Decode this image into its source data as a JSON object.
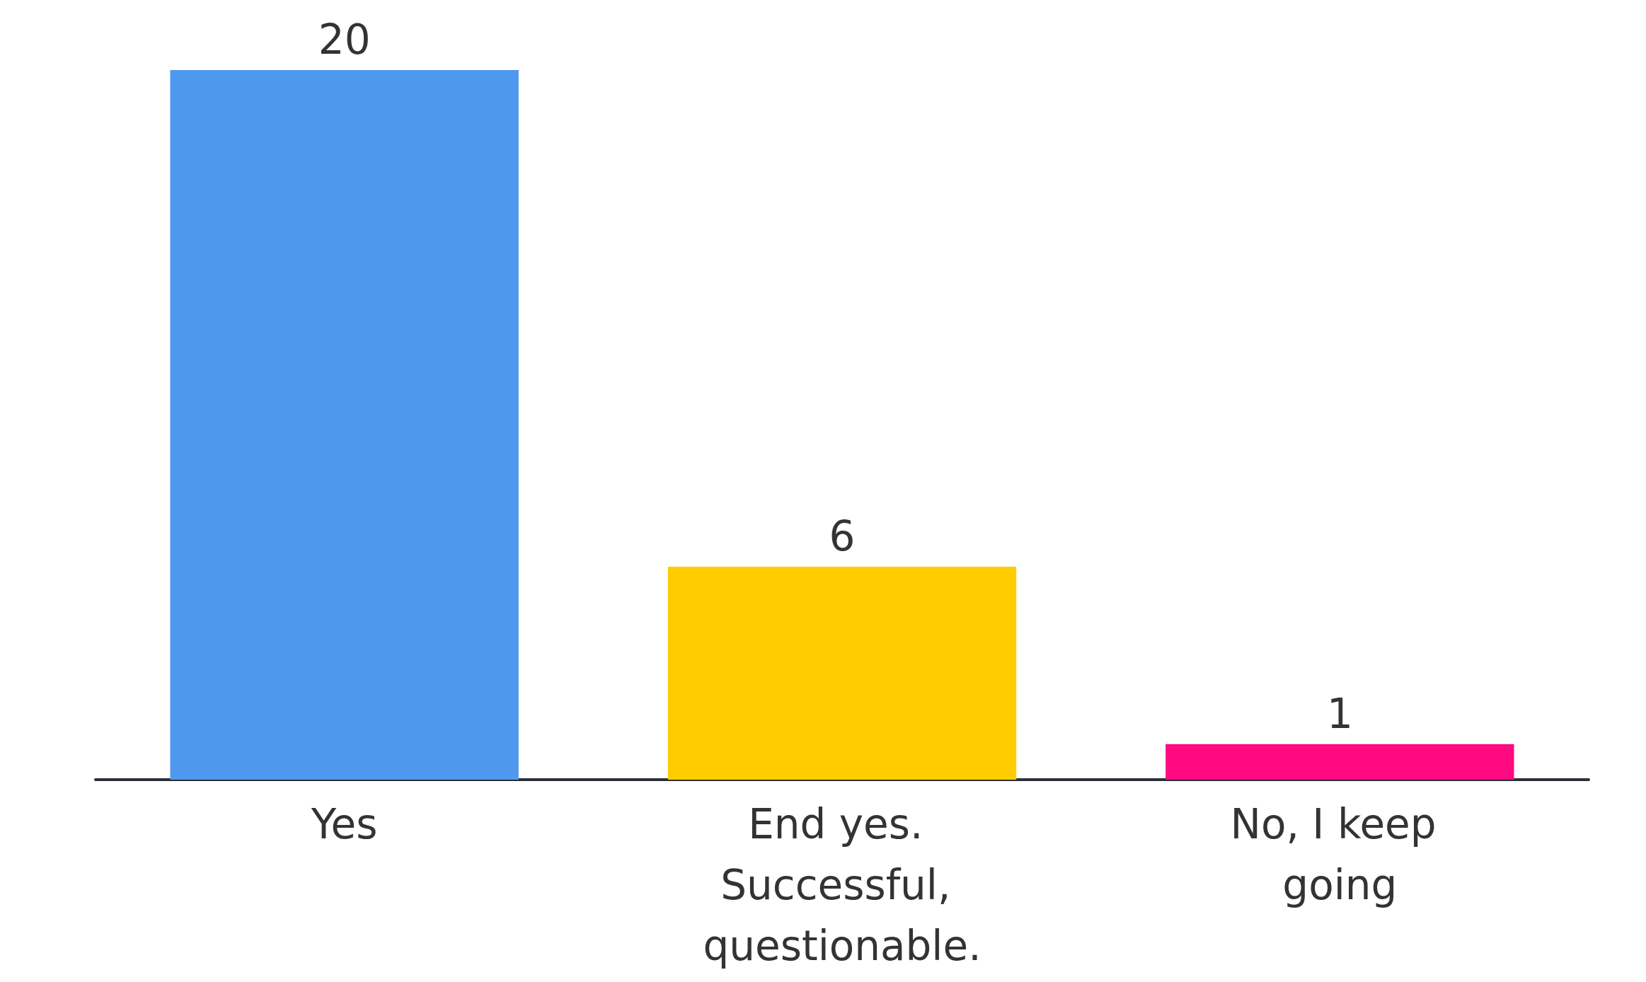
{
  "chart_data": {
    "type": "bar",
    "categories": [
      "Yes",
      "End yes. Successful, questionable.",
      "No, I keep going"
    ],
    "values": [
      20,
      6,
      1
    ],
    "colors": [
      "#4f98ef",
      "#ffcc00",
      "#ff0a80"
    ],
    "data_labels": true
  }
}
